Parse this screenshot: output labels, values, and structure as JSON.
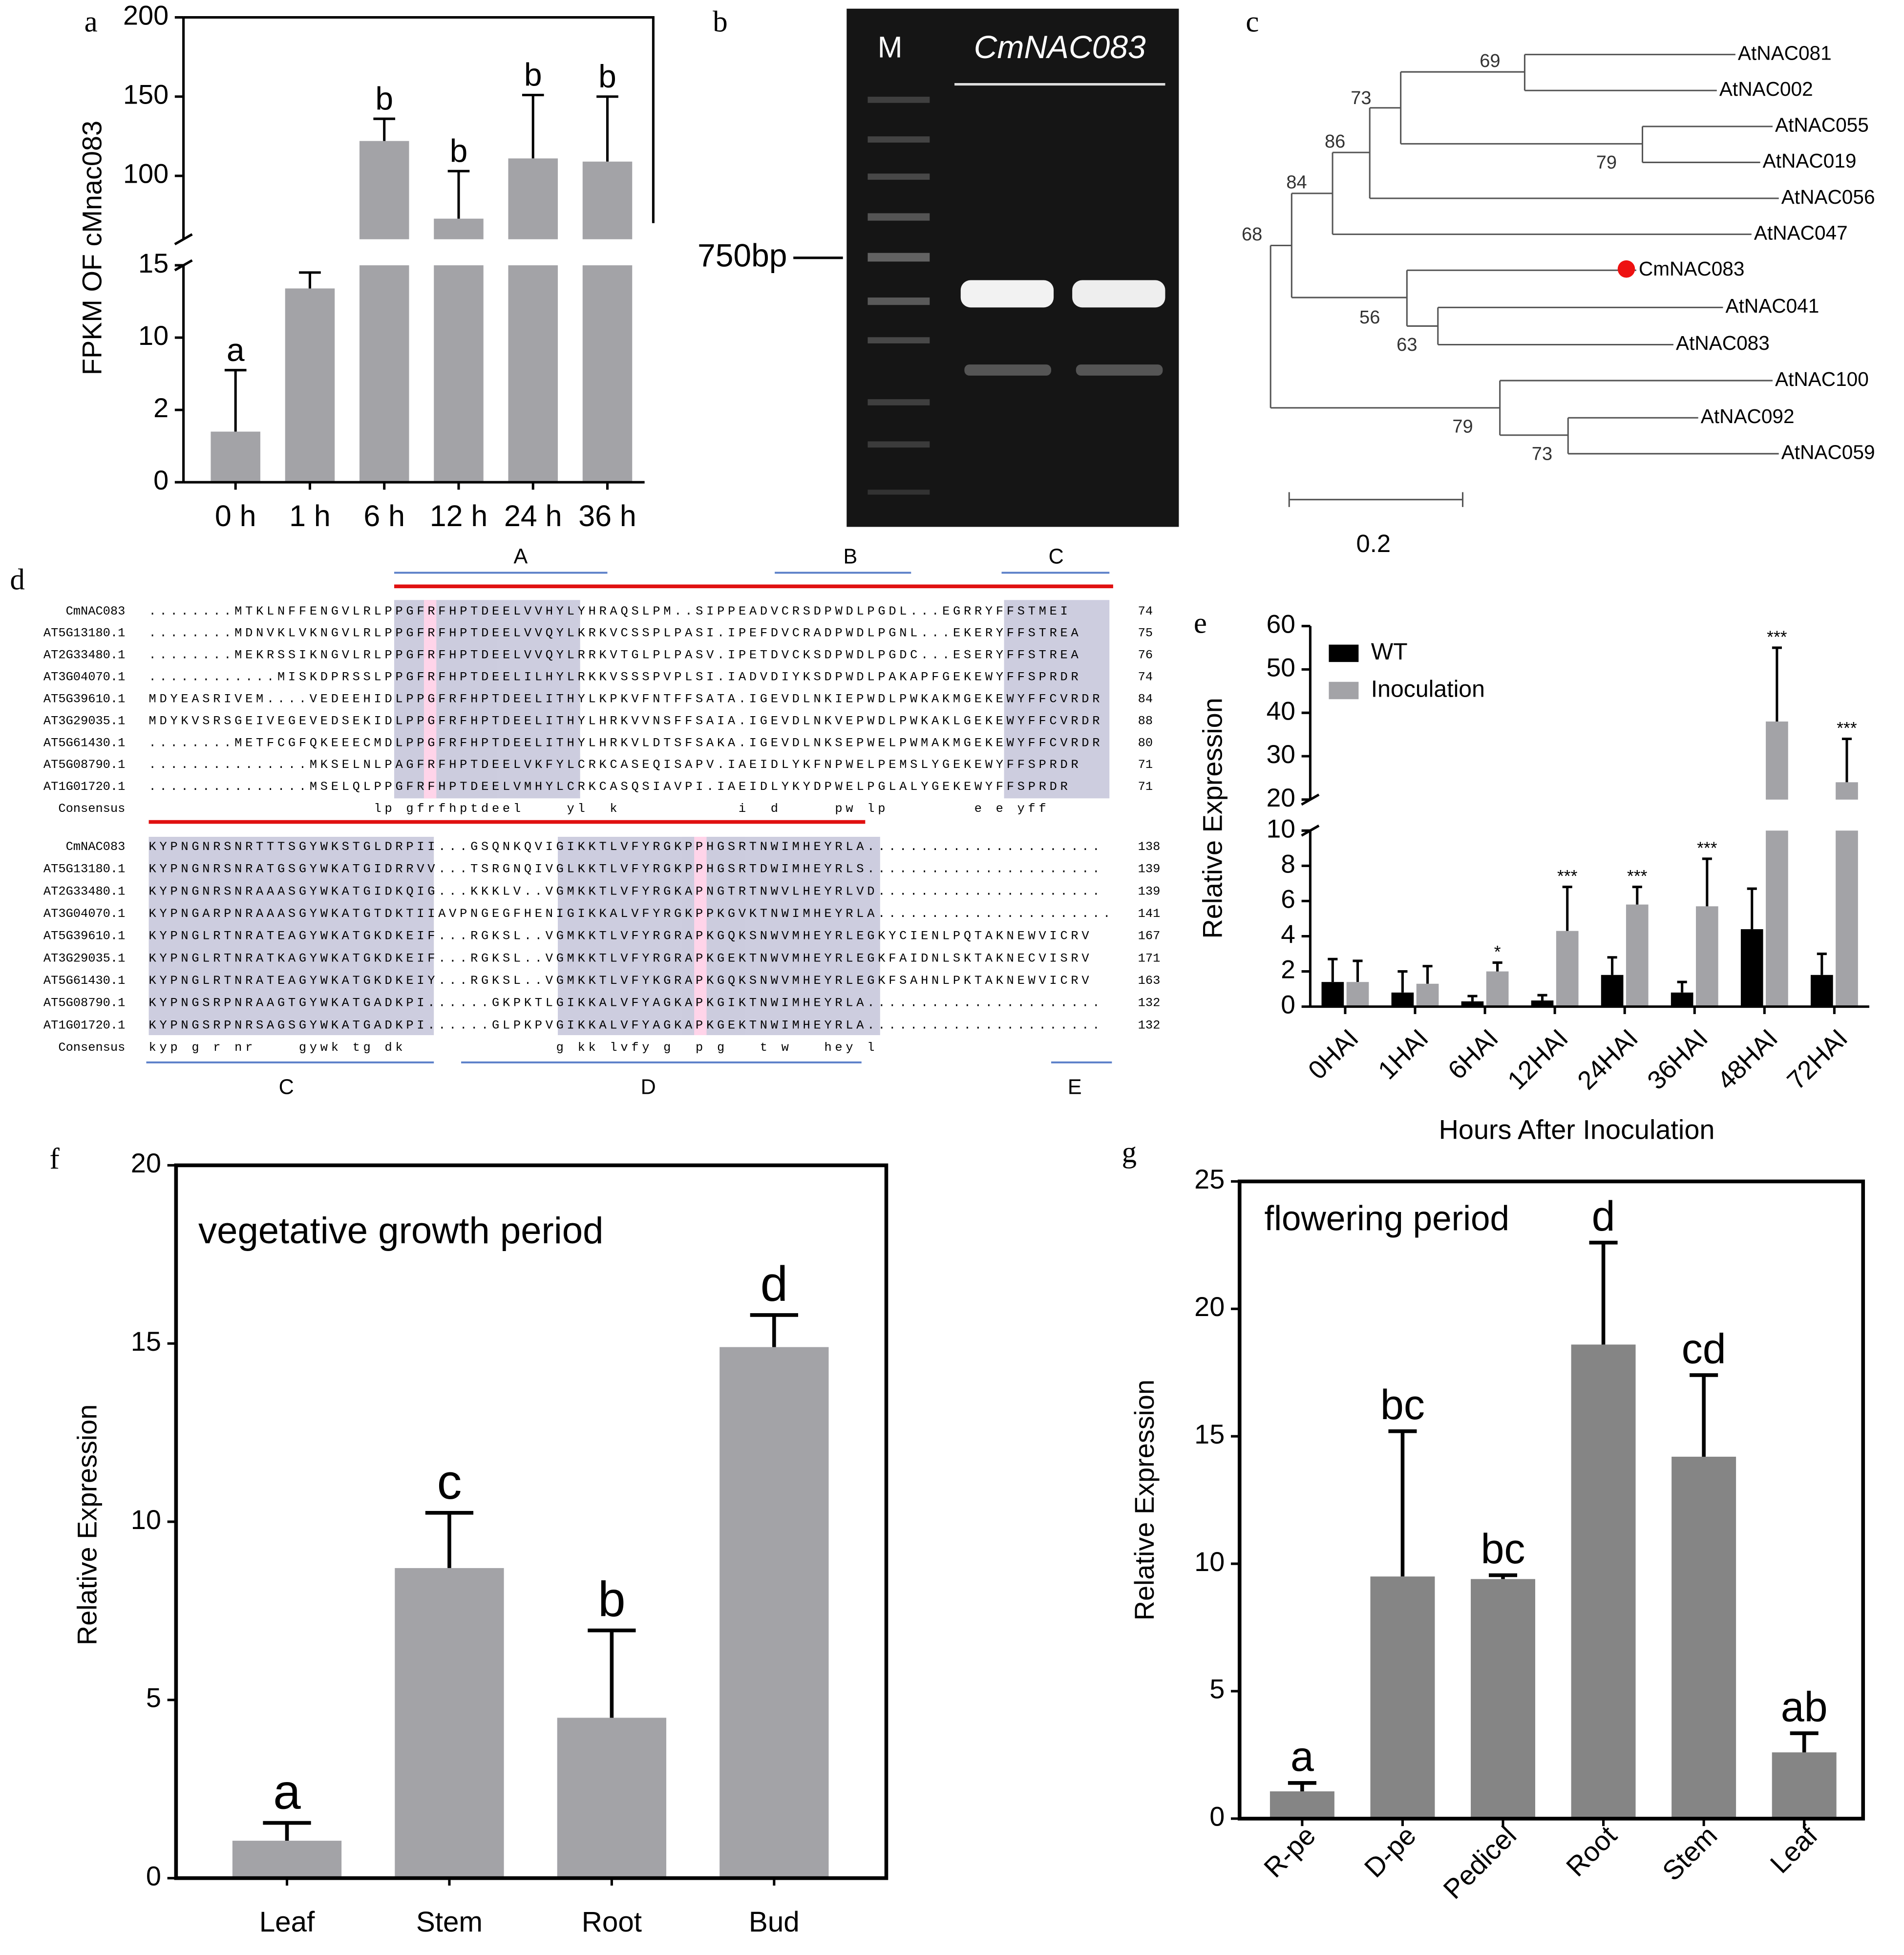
{
  "chart_data": [
    {
      "panel_label": "a",
      "type": "bar",
      "ylabel": "FPKM OF cMnac083",
      "categories": [
        "0 h",
        "1 h",
        "6 h",
        "12 h",
        "24 h",
        "36 h"
      ],
      "segments": [
        {
          "ylim": [
            0,
            15
          ],
          "yticks": [
            0,
            2,
            10,
            15
          ],
          "piecewise": true
        },
        {
          "ylim": [
            60,
            200
          ],
          "yticks": [
            100,
            150,
            200
          ]
        }
      ],
      "frame": "open",
      "series": [
        {
          "color": "#a3a3a7",
          "values": [
            1.4,
            13.4,
            122,
            73,
            111,
            109
          ],
          "errors": [
            5.0,
            1.1,
            14,
            30,
            40,
            41
          ],
          "annotations": [
            "a",
            "b",
            "b",
            "b",
            "b",
            "b"
          ]
        }
      ]
    },
    {
      "panel_label": "e",
      "type": "bar",
      "ylabel": "Relative Expression",
      "xlabel": "Hours After Inoculation",
      "categories": [
        "0HAI",
        "1HAI",
        "6HAI",
        "12HAI",
        "24HAI",
        "36HAI",
        "48HAI",
        "72HAI"
      ],
      "segments": [
        {
          "ylim": [
            0,
            10
          ],
          "yticks": [
            0,
            2,
            4,
            6,
            8,
            10
          ]
        },
        {
          "ylim": [
            20,
            60
          ],
          "yticks": [
            20,
            30,
            40,
            50,
            60
          ]
        }
      ],
      "frame": "open",
      "legend": "upper left",
      "xtick_rotation": -45,
      "series": [
        {
          "name": "WT",
          "color": "#000000",
          "values": [
            1.4,
            0.8,
            0.3,
            0.35,
            1.8,
            0.8,
            4.4,
            1.8
          ],
          "errors": [
            1.3,
            1.2,
            0.3,
            0.3,
            1.0,
            0.6,
            2.3,
            1.2
          ]
        },
        {
          "name": "Inoculation",
          "color": "#a3a3a7",
          "values": [
            1.4,
            1.3,
            2.0,
            4.3,
            5.8,
            5.7,
            38,
            24
          ],
          "errors": [
            1.2,
            1.0,
            0.5,
            2.5,
            1.0,
            2.7,
            17,
            10
          ],
          "annotations": [
            null,
            null,
            "*",
            "***",
            "***",
            "***",
            "***",
            "***"
          ]
        }
      ]
    },
    {
      "panel_label": "f",
      "type": "bar",
      "ylabel": "Relative Expression",
      "annotation": "vegetative growth period",
      "categories": [
        "Leaf",
        "Stem",
        "Root",
        "Bud"
      ],
      "ylim": [
        0,
        20
      ],
      "yticks": [
        0,
        5,
        10,
        15,
        20
      ],
      "frame": "box",
      "series": [
        {
          "color": "#a3a3a7",
          "values": [
            1.05,
            8.7,
            4.5,
            14.9
          ],
          "errors": [
            0.5,
            1.55,
            2.45,
            0.9
          ],
          "annotations": [
            "a",
            "c",
            "b",
            "d"
          ]
        }
      ]
    },
    {
      "panel_label": "g",
      "type": "bar",
      "ylabel": "Relative Expression",
      "annotation": "flowering period",
      "categories": [
        "R-pe",
        "D-pe",
        "Pedicel",
        "Root",
        "Stem",
        "Leaf"
      ],
      "ylim": [
        0,
        25
      ],
      "yticks": [
        0,
        5,
        10,
        15,
        20,
        25
      ],
      "frame": "box",
      "xtick_rotation": -45,
      "series": [
        {
          "color": "#858585",
          "values": [
            1.07,
            9.5,
            9.4,
            18.6,
            14.2,
            2.6
          ],
          "errors": [
            0.33,
            5.7,
            0.15,
            4.0,
            3.2,
            0.75
          ],
          "annotations": [
            "a",
            "bc",
            "bc",
            "d",
            "cd",
            "ab"
          ]
        }
      ]
    }
  ],
  "gel": {
    "panel_label": "b",
    "lane_labels": [
      "M",
      "CmNAC083"
    ],
    "marker": "750bp"
  },
  "tree": {
    "panel_label": "c",
    "leaves": [
      "AtNAC081",
      "AtNAC002",
      "AtNAC055",
      "AtNAC019",
      "AtNAC056",
      "AtNAC047",
      "CmNAC083",
      "AtNAC041",
      "AtNAC083",
      "AtNAC100",
      "AtNAC092",
      "AtNAC059"
    ],
    "bootstrap": [
      69,
      73,
      86,
      79,
      84,
      68,
      56,
      63,
      79,
      73
    ],
    "scale": "0.2"
  },
  "alignment": {
    "panel_label": "d",
    "regions_top": [
      "A",
      "B",
      "C"
    ],
    "regions_bottom": [
      "C",
      "D",
      "E"
    ],
    "blocks": [
      {
        "rows": [
          {
            "name": "CmNAC083",
            "seq": "........MTKLNFFENGVLRLPPGFRFHPTDEELVVHYLYHRAQSLPM..SIPPEADVCRSDPWDLPGDL...EGRRYFFSTMEI",
            "end": 74
          },
          {
            "name": "AT5G13180.1",
            "seq": "........MDNVKLVKNGVLRLPPGFRFHPTDEELVVQYLKRKVCSSPLPASI.IPEFDVCRADPWDLPGNL...EKERYFFSTREA",
            "end": 75
          },
          {
            "name": "AT2G33480.1",
            "seq": "........MEKRSSIKNGVLRLPPGFRFHPTDEELVVQYLRRKVTGLPLPASV.IPETDVCKSDPWDLPGDC...ESERYFFSTREA",
            "end": 76
          },
          {
            "name": "AT3G04070.1",
            "seq": "............MISKDPRSSLPPGFRFHPTDEELILHYLRKKVSSSPVPLSI.IADVDIYKSDPWDLPAKAPFGEKEWYFFSPRDR",
            "end": 74
          },
          {
            "name": "AT5G39610.1",
            "seq": "MDYEASRIVEM....VEDEEHIDLPPGFRFHPTDEELITHYLKPKVFNTFFSATA.IGEVDLNKIEPWDLPWKAKMGEKEWYFFCVRDR",
            "end": 84
          },
          {
            "name": "AT3G29035.1",
            "seq": "MDYKVSRSGEIVEGEVEDSEKIDLPPGFRFHPTDEELITHYLHRKVVNSFFSAIA.IGEVDLNKVEPWDLPWKAKLGEKEWYFFCVRDR",
            "end": 88
          },
          {
            "name": "AT5G61430.1",
            "seq": "........METFCGFQKEEECMDLPPGFRFHPTDEELITHYLHRKVLDTSFSAKA.IGEVDLNKSEPWELPWMAKMGEKEWYFFCVRDR",
            "end": 80
          },
          {
            "name": "AT5G08790.1",
            "seq": "...............MKSELNLPAGFRFHPTDEELVKFYLCRKCASEQISAPV.IAEIDLYKFNPWELPEMSLYGEKEWYFFSPRDR",
            "end": 71
          },
          {
            "name": "AT1G01720.1",
            "seq": "...............MSELQLPPGFRFHPTDEELVMHYLCRKCASQSIAVPI.IAEIDLYKYDPWELPGLALYGEKEWYFFSPRDR",
            "end": 71
          },
          {
            "name": "Consensus",
            "seq": "                     lp gfrfhptdeel    yl  k           i  d     pw lp        e e yff     "
          }
        ]
      },
      {
        "rows": [
          {
            "name": "CmNAC083",
            "seq": "KYPNGNRSNRTTTSGYWKSTGLDRPII...GSQNKQVIGIKKTLVFYRGKPPHGSRTNWIMHEYRLA......................",
            "end": 138
          },
          {
            "name": "AT5G13180.1",
            "seq": "KYPNGNRSNRATGSGYWKATGIDRRVV...TSRGNQIVGLKKTLVFYRGKPPHGSRTDWIMHEYRLS......................",
            "end": 139
          },
          {
            "name": "AT2G33480.1",
            "seq": "KYPNGNRSNRAAASGYWKATGIDKQIG...KKKLV..VGMKKTLVFYRGKAPNGTRTNWVLHEYRLVD.....................",
            "end": 139
          },
          {
            "name": "AT3G04070.1",
            "seq": "KYPNGARPNRAAASGYWKATGTDKTIIAVPNGEGFHENIGIKKALVFYRGKPPKGVKTNWIMHEYRLA......................",
            "end": 141
          },
          {
            "name": "AT5G39610.1",
            "seq": "KYPNGLRTNRATEAGYWKATGKDKEIF...RGKSL..VGMKKTLVFYRGRAPKGQKSNWVMHEYRLEGKYCIENLPQTAKNEWVICRV",
            "end": 167
          },
          {
            "name": "AT3G29035.1",
            "seq": "KYPNGLRTNRATKAGYWKATGKDKEIF...RGKSL..VGMKKTLVFYRGRAPKGEKTNWVMHEYRLEGKFAIDNLSKTAKNECVISRV",
            "end": 171
          },
          {
            "name": "AT5G61430.1",
            "seq": "KYPNGLRTNRATEAGYWKATGKDKEIY...RGKSL..VGMKKTLVFYKGRAPKGQKSNWVMHEYRLEGKFSAHNLPKTAKNEWVICRV",
            "end": 163
          },
          {
            "name": "AT5G08790.1",
            "seq": "KYPNGSRPNRAAGTGYWKATGADKPI......GKPKTLGIKKALVFYAGKAPKGIKTNWIMHEYRLA......................",
            "end": 132
          },
          {
            "name": "AT1G01720.1",
            "seq": "KYPNGSRPNRSAGSGYWKATGADKPI......GLPKPVGIKKALVFYAGKAPKGEKTNWIMHEYRLA......................",
            "end": 132
          },
          {
            "name": "Consensus",
            "seq": "kyp g r nr    gywk tg dk              g kk lvfy g  p g   t w   hey l                     "
          }
        ]
      }
    ]
  }
}
